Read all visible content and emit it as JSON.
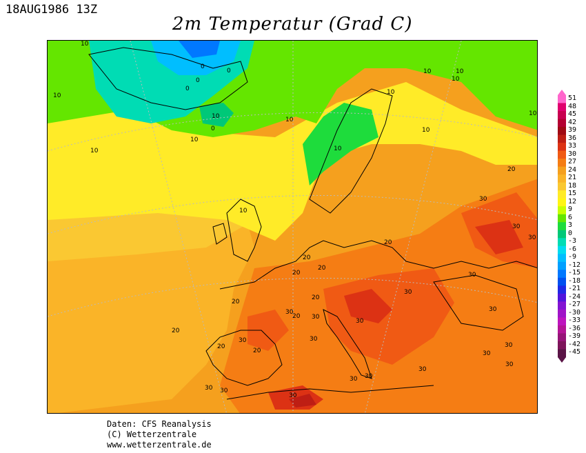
{
  "header": {
    "timestamp": "18AUG1986 13Z",
    "title": "2m Temperatur (Grad C)"
  },
  "map": {
    "region": "Europe",
    "variable": "2m temperature",
    "units": "Grad C",
    "contour_labels": {
      "10": "10",
      "0": "0",
      "20": "20",
      "30": "30"
    }
  },
  "legend": {
    "labels": [
      "51",
      "48",
      "45",
      "42",
      "39",
      "36",
      "33",
      "30",
      "27",
      "24",
      "21",
      "18",
      "15",
      "12",
      "9",
      "6",
      "3",
      "0",
      "-3",
      "-6",
      "-9",
      "-12",
      "-15",
      "-18",
      "-21",
      "-24",
      "-27",
      "-30",
      "-33",
      "-36",
      "-39",
      "-42",
      "-45"
    ],
    "colors": [
      "#ff66cc",
      "#e0006e",
      "#c80050",
      "#b40032",
      "#a00a14",
      "#be1e14",
      "#dc3214",
      "#f05a14",
      "#f57d14",
      "#f5a01e",
      "#fab428",
      "#fac832",
      "#ffeb28",
      "#fff514",
      "#c8ff00",
      "#64e600",
      "#1edc3c",
      "#00c878",
      "#00dcb4",
      "#00dcf0",
      "#00beff",
      "#00a0ff",
      "#0078ff",
      "#0050f0",
      "#1e28e6",
      "#5014dc",
      "#8214d2",
      "#a014c8",
      "#be14be",
      "#b41496",
      "#961478",
      "#7d145a",
      "#5a1446"
    ]
  },
  "credits": {
    "line1": "Daten: CFS Reanalysis",
    "line2": "(C) Wetterzentrale",
    "line3": "www.wetterzentrale.de"
  }
}
